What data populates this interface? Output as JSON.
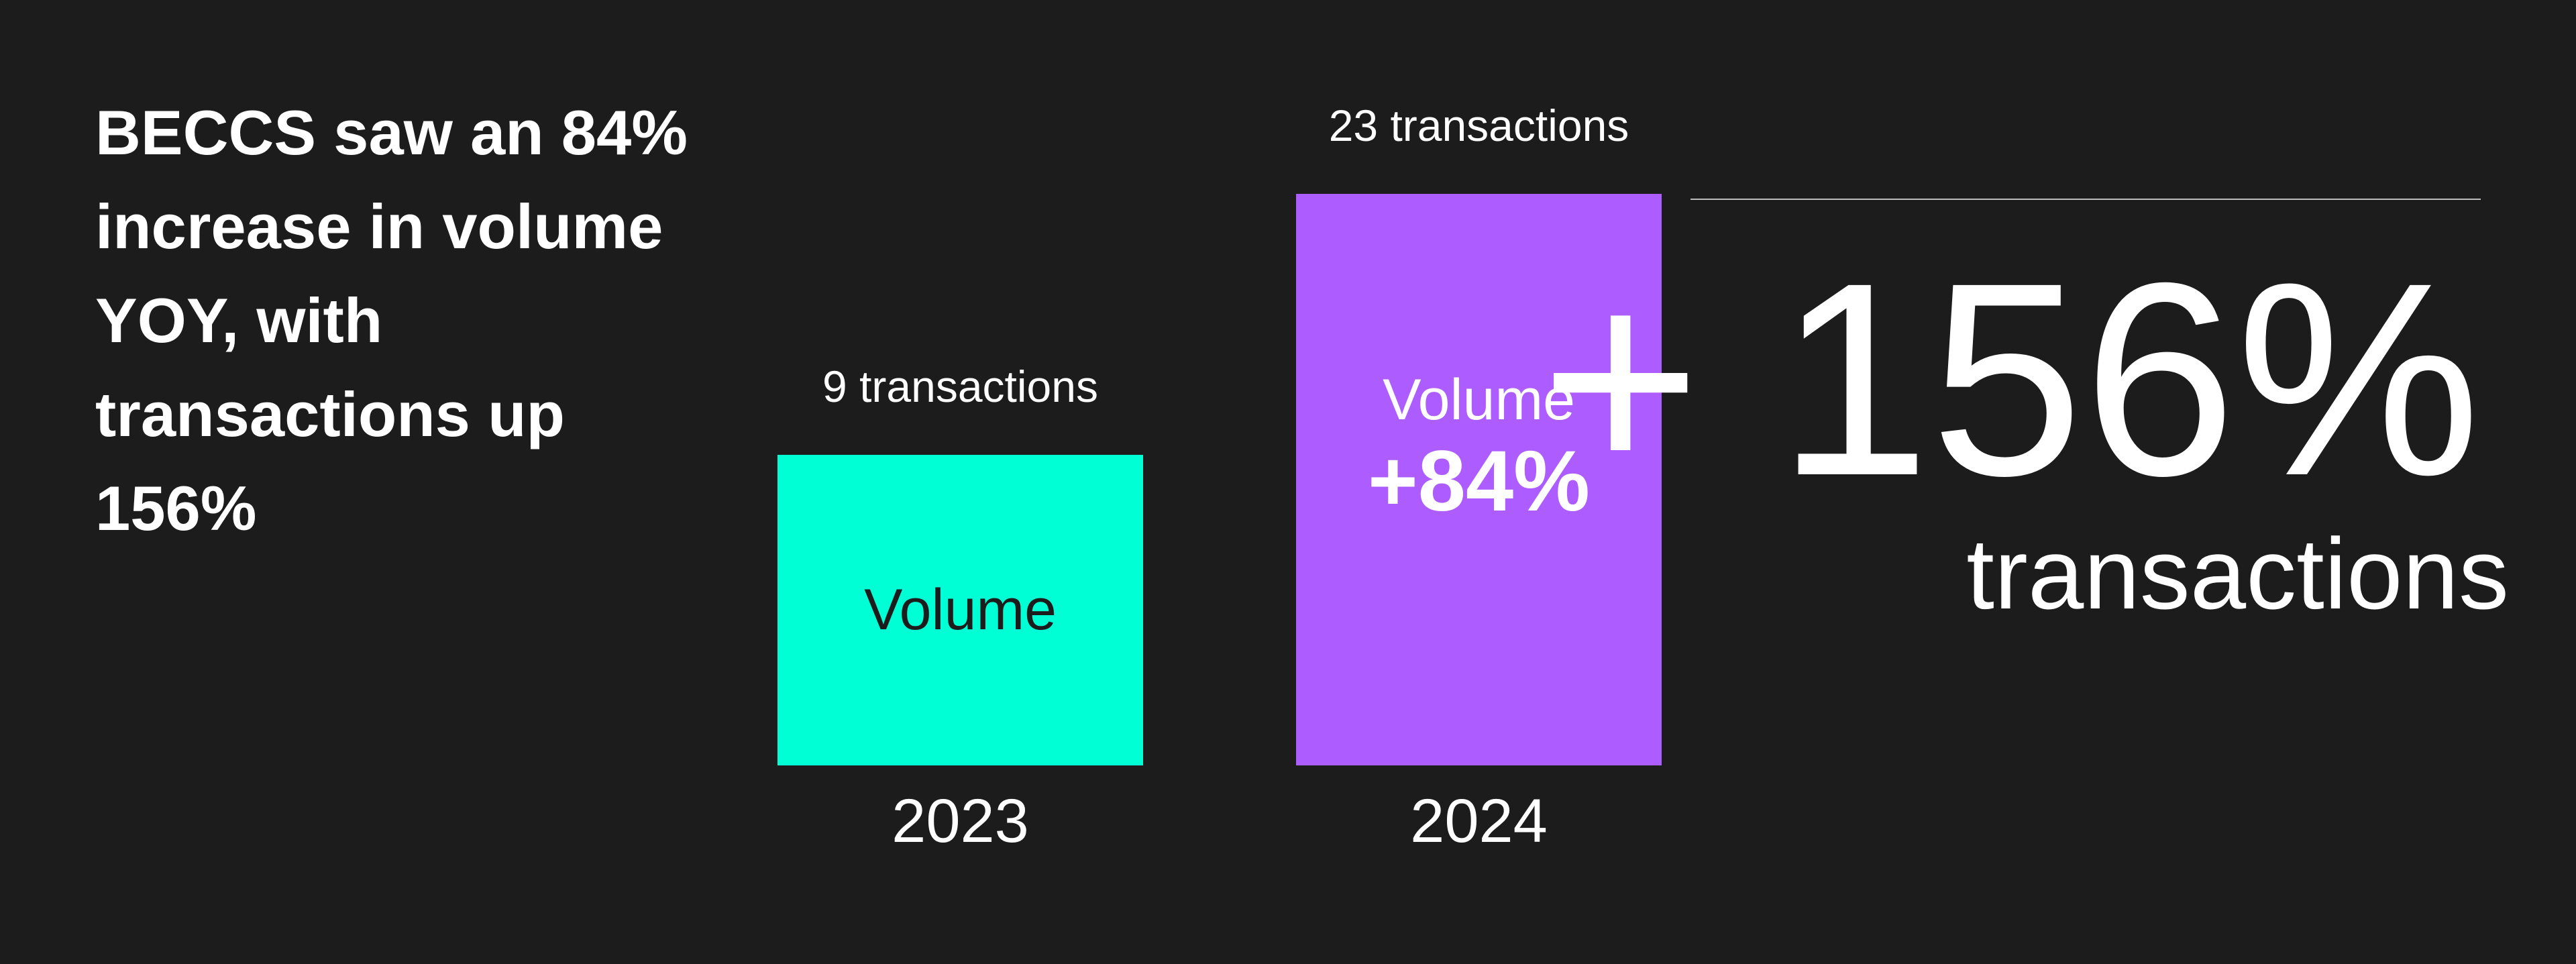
{
  "headline": "BECCS saw an 84% increase in volume YOY, with transactions up 156%",
  "chart_data": {
    "type": "bar",
    "categories": [
      "2023",
      "2024"
    ],
    "values": [
      100,
      184
    ],
    "bar_labels": [
      "Volume",
      "Volume"
    ],
    "bar_change_labels": [
      "",
      "+84%"
    ],
    "top_labels": [
      "9 transactions",
      "23 transactions"
    ],
    "transactions": [
      9,
      23
    ],
    "colors": [
      "#00ffd5",
      "#ad5cff"
    ],
    "label_colors": [
      "#1c1c1c",
      "#ffffff"
    ],
    "grid": false
  },
  "callout": {
    "value": "+ 156%",
    "label": "transactions"
  },
  "colors": {
    "background": "#1c1c1c",
    "text": "#ffffff"
  }
}
